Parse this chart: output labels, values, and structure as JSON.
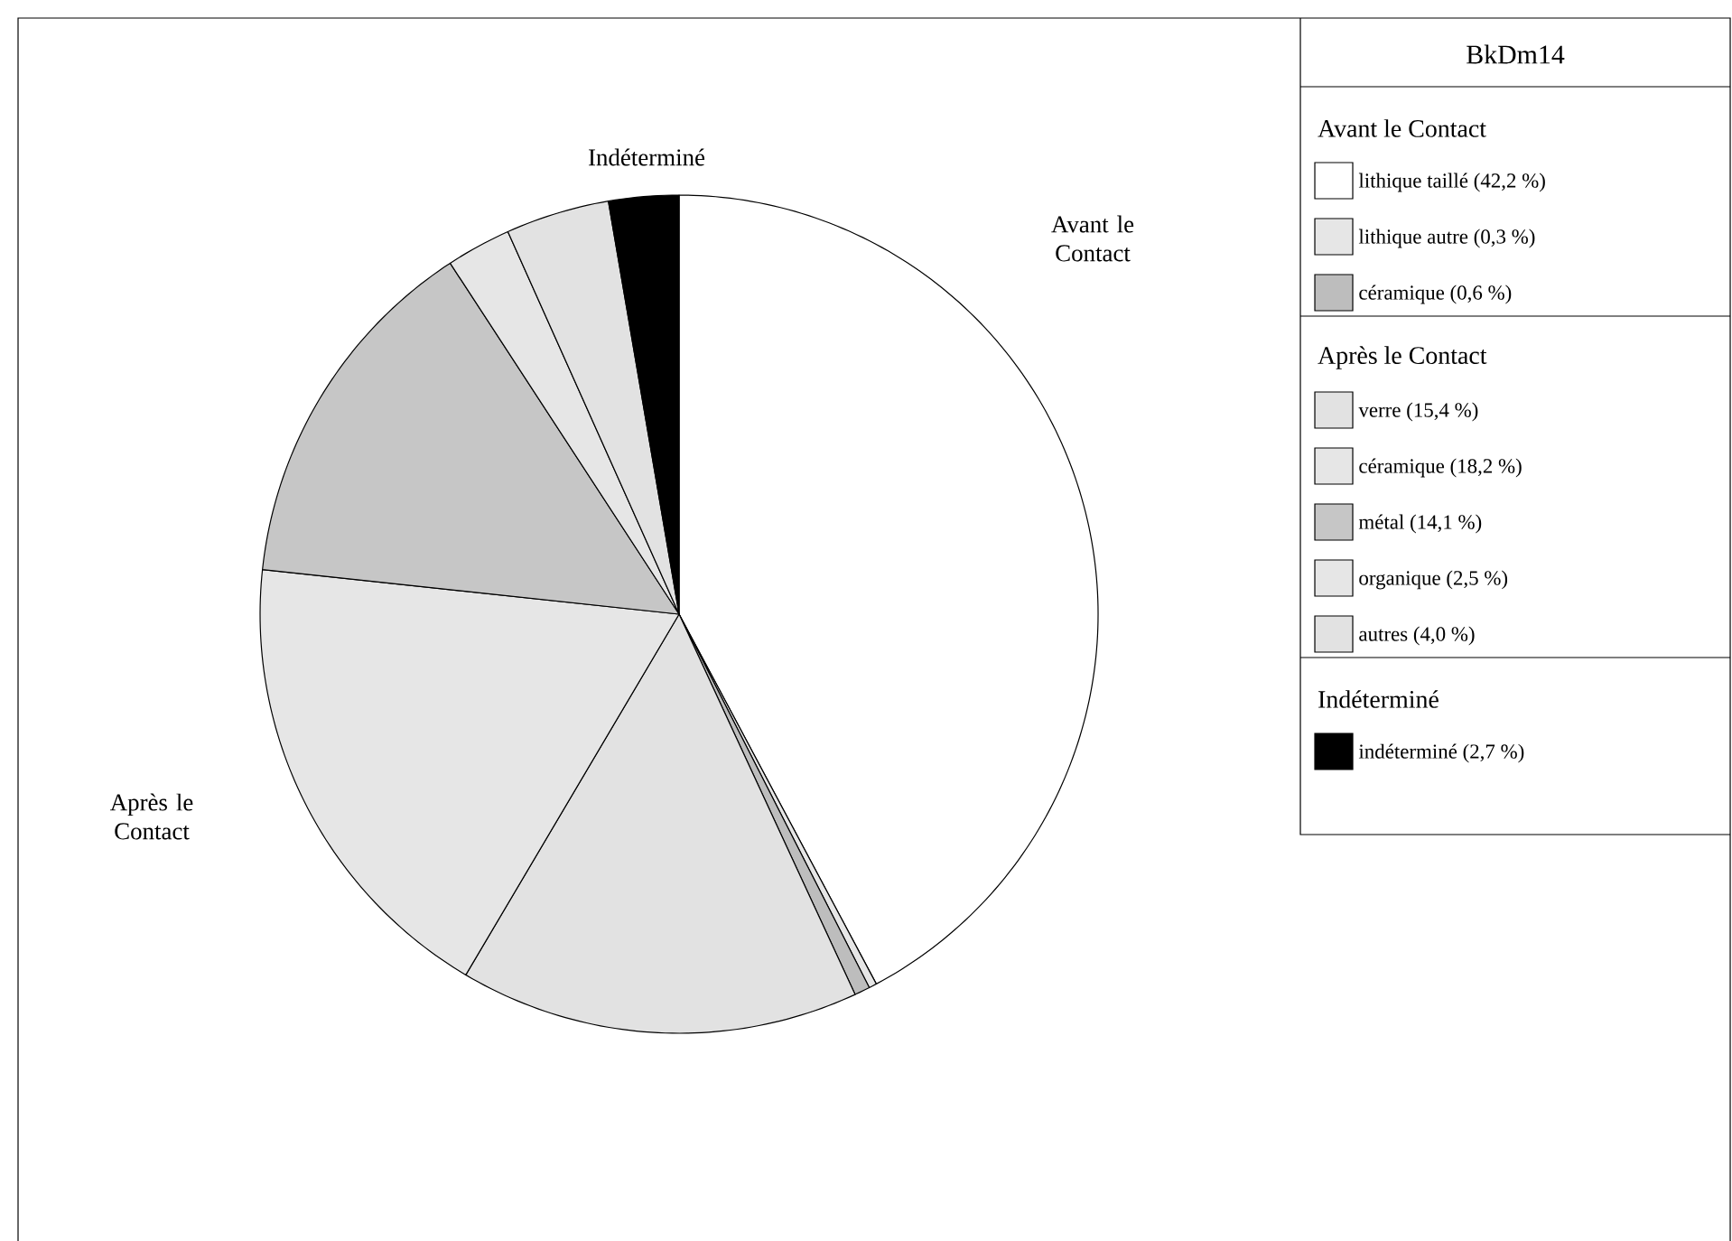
{
  "chart_data": {
    "type": "pie",
    "title": "BkDm14",
    "categories": [
      "lithique taillé (42,2 %)",
      "lithique autre (0,3 %)",
      "céramique (0,6 %)",
      "verre (15,4 %)",
      "céramique (18,2 %)",
      "métal (14,1 %)",
      "organique (2,5 %)",
      "autres (4,0 %)",
      "indéterminé (2,7 %)"
    ],
    "values": [
      42.2,
      0.3,
      0.6,
      15.4,
      18.2,
      14.1,
      2.5,
      4.0,
      2.7
    ],
    "colors": [
      "#ffffff",
      "#e6e6e6",
      "#bdbdbd",
      "#e2e2e2",
      "#e6e6e6",
      "#c6c6c6",
      "#e6e6e6",
      "#e2e2e2",
      "#000000"
    ],
    "annotations": [
      "Indéterminé",
      "Avant le Contact",
      "Après le Contact",
      "Avant le Contact",
      "Après le Contact",
      "Indéterminé"
    ],
    "legend": "right"
  }
}
